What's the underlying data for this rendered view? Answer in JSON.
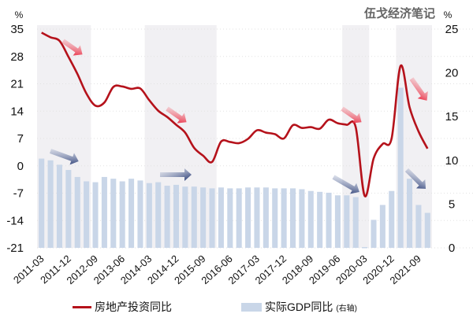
{
  "watermark": "伍戈经济笔记",
  "left_unit": "%",
  "right_unit": "%",
  "legend": {
    "line_label": "房地产投资同比",
    "bar_label": "实际GDP同比",
    "bar_note": "(右轴)"
  },
  "chart_data": {
    "type": "bar+line",
    "title": "",
    "watermark": "伍戈经济笔记",
    "y_left": {
      "label": "%",
      "ticks": [
        35,
        28,
        21,
        14,
        7,
        0,
        -7,
        -14,
        -21
      ],
      "range": [
        -21,
        35
      ]
    },
    "y_right": {
      "label": "% (右轴)",
      "ticks": [
        25,
        20,
        15,
        10,
        5,
        0
      ],
      "range": [
        0,
        25
      ]
    },
    "x_tick_labels": [
      "2011-03",
      "2011-12",
      "2012-09",
      "2013-06",
      "2014-03",
      "2014-12",
      "2015-09",
      "2016-06",
      "2017-03",
      "2017-12",
      "2018-09",
      "2019-06",
      "2020-03",
      "2020-12",
      "2021-09"
    ],
    "categories": [
      "2011Q1",
      "2011Q2",
      "2011Q3",
      "2011Q4",
      "2012Q1",
      "2012Q2",
      "2012Q3",
      "2012Q4",
      "2013Q1",
      "2013Q2",
      "2013Q3",
      "2013Q4",
      "2014Q1",
      "2014Q2",
      "2014Q3",
      "2014Q4",
      "2015Q1",
      "2015Q2",
      "2015Q3",
      "2015Q4",
      "2016Q1",
      "2016Q2",
      "2016Q3",
      "2016Q4",
      "2017Q1",
      "2017Q2",
      "2017Q3",
      "2017Q4",
      "2018Q1",
      "2018Q2",
      "2018Q3",
      "2018Q4",
      "2019Q1",
      "2019Q2",
      "2019Q3",
      "2019Q4",
      "2020Q1",
      "2020Q2",
      "2020Q3",
      "2020Q4",
      "2021Q1",
      "2021Q2",
      "2021Q3",
      "2021Q4"
    ],
    "series": [
      {
        "name": "实际GDP同比 (右轴)",
        "type": "bar",
        "axis": "right",
        "color": "#c9d6e8",
        "values": [
          10.2,
          10.0,
          9.5,
          8.9,
          8.1,
          7.6,
          7.5,
          8.1,
          7.9,
          7.6,
          7.9,
          7.7,
          7.4,
          7.5,
          7.1,
          7.2,
          7.0,
          7.0,
          6.9,
          6.8,
          6.9,
          6.8,
          6.8,
          6.9,
          6.9,
          6.9,
          6.8,
          6.8,
          6.8,
          6.7,
          6.5,
          6.4,
          6.3,
          6.0,
          6.0,
          5.8,
          -6.8,
          3.2,
          4.9,
          6.5,
          18.3,
          7.9,
          4.9,
          4.0
        ]
      },
      {
        "name": "房地产投资同比",
        "type": "line",
        "axis": "left",
        "color": "#b5121b",
        "values": [
          34.1,
          32.9,
          32.0,
          27.9,
          23.5,
          18.5,
          15.4,
          16.2,
          20.2,
          20.3,
          19.7,
          19.8,
          16.8,
          14.1,
          12.5,
          10.5,
          8.5,
          4.6,
          2.6,
          1.0,
          6.2,
          6.1,
          5.8,
          6.9,
          9.1,
          8.5,
          8.1,
          7.0,
          10.4,
          9.7,
          9.9,
          9.5,
          11.8,
          10.9,
          10.5,
          9.9,
          -7.7,
          1.9,
          5.6,
          7.0,
          25.6,
          15.0,
          8.8,
          4.4
        ]
      }
    ],
    "shaded_periods": [
      [
        "2011Q1",
        "2012Q2"
      ],
      [
        "2014Q1",
        "2015Q4"
      ],
      [
        "2019Q3",
        "2020Q1"
      ],
      [
        "2021Q1",
        "2021Q4"
      ]
    ],
    "annotations": [
      "red down arrows on investment declines",
      "navy arrows on GDP slowdowns"
    ],
    "grid": true,
    "legend_position": "bottom"
  }
}
